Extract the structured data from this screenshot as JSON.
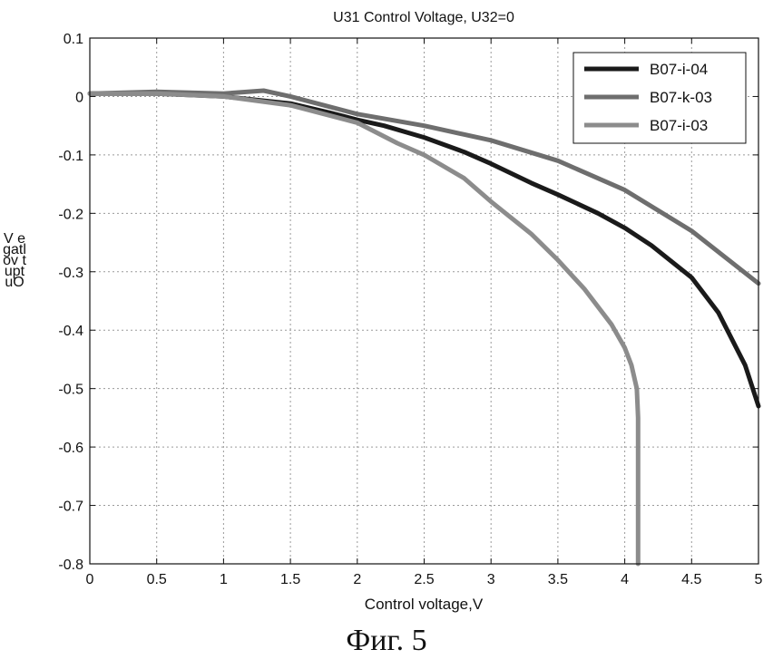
{
  "chart_data": {
    "type": "line",
    "title": "U31 Control Voltage, U32=0",
    "xlabel": "Control voltage,V",
    "ylabel": "V egatlov tuptuO",
    "xlim": [
      0,
      5
    ],
    "ylim": [
      -0.8,
      0.1
    ],
    "x_ticks": [
      0,
      0.5,
      1,
      1.5,
      2,
      2.5,
      3,
      3.5,
      4,
      4.5,
      5
    ],
    "x_tick_labels": [
      "0",
      "0.5",
      "1",
      "1.5",
      "2",
      "2.5",
      "3",
      "3.5",
      "4",
      "4.5",
      "5"
    ],
    "y_ticks": [
      0.1,
      0,
      -0.1,
      -0.2,
      -0.3,
      -0.4,
      -0.5,
      -0.6,
      -0.7,
      -0.8
    ],
    "y_tick_labels": [
      "0.1",
      "0",
      "-0.1",
      "-0.2",
      "-0.3",
      "-0.4",
      "-0.5",
      "-0.6",
      "-0.7",
      "-0.8"
    ],
    "grid": true,
    "legend_position": "top-right",
    "series": [
      {
        "name": "B07-i-04",
        "color": "#1a1a1a",
        "x": [
          0,
          0.5,
          1.0,
          1.5,
          1.8,
          2.0,
          2.2,
          2.5,
          2.8,
          3.0,
          3.3,
          3.5,
          3.8,
          4.0,
          4.2,
          4.5,
          4.7,
          4.9,
          5.0
        ],
        "y": [
          0.005,
          0.005,
          0.0,
          -0.012,
          -0.028,
          -0.04,
          -0.05,
          -0.07,
          -0.095,
          -0.115,
          -0.148,
          -0.168,
          -0.2,
          -0.225,
          -0.255,
          -0.31,
          -0.37,
          -0.46,
          -0.53
        ]
      },
      {
        "name": "B07-k-03",
        "color": "#6e6e6e",
        "x": [
          0,
          0.5,
          1.0,
          1.3,
          1.5,
          2.0,
          2.5,
          3.0,
          3.5,
          4.0,
          4.5,
          5.0
        ],
        "y": [
          0.005,
          0.008,
          0.005,
          0.01,
          0.0,
          -0.03,
          -0.05,
          -0.075,
          -0.11,
          -0.16,
          -0.23,
          -0.32
        ]
      },
      {
        "name": "B07-i-03",
        "color": "#8c8c8c",
        "x": [
          0,
          0.5,
          1.0,
          1.5,
          2.0,
          2.3,
          2.5,
          2.8,
          3.0,
          3.3,
          3.5,
          3.7,
          3.9,
          4.0,
          4.05,
          4.09,
          4.1,
          4.1
        ],
        "y": [
          0.005,
          0.005,
          0.0,
          -0.015,
          -0.045,
          -0.08,
          -0.1,
          -0.14,
          -0.18,
          -0.235,
          -0.28,
          -0.33,
          -0.39,
          -0.43,
          -0.46,
          -0.5,
          -0.55,
          -0.8
        ]
      }
    ]
  },
  "caption": "Фиг. 5"
}
